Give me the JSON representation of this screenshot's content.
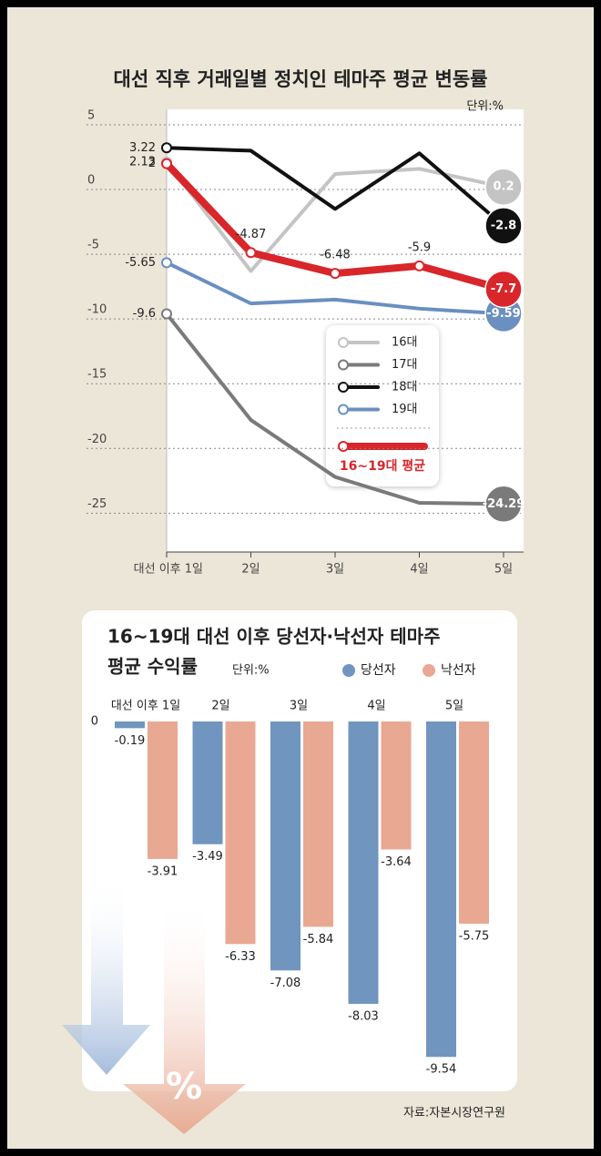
{
  "chart_data": [
    {
      "type": "line",
      "title": "대선 직후 거래일별 정치인 테마주 평균 변동률",
      "unit": "단위:%",
      "categories": [
        "대선 이후 1일",
        "2일",
        "3일",
        "4일",
        "5일"
      ],
      "ylim": [
        -28,
        5
      ],
      "yticks": [
        5,
        0,
        -5,
        -10,
        -15,
        -20,
        -25
      ],
      "grid": true,
      "series": [
        {
          "name": "16대",
          "color": "#c4c4c4",
          "values": [
            2.13,
            -6.3,
            1.2,
            1.6,
            0.2
          ],
          "value_labels": [
            "2.13",
            null,
            null,
            null,
            "0.2"
          ]
        },
        {
          "name": "17대",
          "color": "#7a7a7a",
          "values": [
            -9.6,
            -17.8,
            -22.2,
            -24.2,
            -24.29
          ],
          "value_labels": [
            "-9.6",
            null,
            null,
            null,
            "-24.29"
          ]
        },
        {
          "name": "18대",
          "color": "#111111",
          "values": [
            3.22,
            3.0,
            -1.5,
            2.8,
            -2.8
          ],
          "value_labels": [
            "3.22",
            null,
            null,
            null,
            "-2.8"
          ]
        },
        {
          "name": "19대",
          "color": "#6a8fc0",
          "values": [
            -5.65,
            -8.8,
            -8.5,
            -9.2,
            -9.59
          ],
          "value_labels": [
            "-5.65",
            null,
            null,
            null,
            "-9.59"
          ]
        },
        {
          "name": "16~19대 평균",
          "color": "#d8262b",
          "values": [
            2,
            -4.87,
            -6.48,
            -5.9,
            -7.7
          ],
          "value_labels": [
            "2",
            "-4.87",
            "-6.48",
            "-5.9",
            "-7.7"
          ]
        }
      ]
    },
    {
      "type": "bar",
      "title": [
        "16~19대 대선 이후 당선자·낙선자 테마주",
        "평균 수익률"
      ],
      "unit": "단위:%",
      "categories": [
        "대선 이후 1일",
        "2일",
        "3일",
        "4일",
        "5일"
      ],
      "ylim": [
        -10,
        0
      ],
      "yticks": [
        0
      ],
      "series": [
        {
          "name": "당선자",
          "color": "#7095bf",
          "values": [
            -0.19,
            -3.49,
            -7.08,
            -8.03,
            -9.54
          ]
        },
        {
          "name": "낙선자",
          "color": "#e9a892",
          "values": [
            -3.91,
            -6.33,
            -5.84,
            -3.64,
            -5.75
          ]
        }
      ]
    }
  ],
  "icon_label": "%",
  "source": "자료:자본시장연구원"
}
